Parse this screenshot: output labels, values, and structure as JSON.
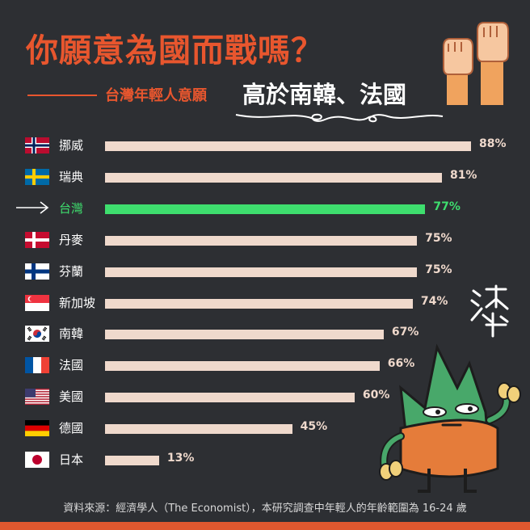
{
  "title": "你願意為國而戰嗎？",
  "subtitle_prefix": "台灣年輕人意願",
  "subtitle_main": "高於南韓、法國",
  "source_note": "資料來源：經濟學人（The Economist），本研究調查中年輕人的年齡範圍為 16-24 歲",
  "colors": {
    "accent": "#e8562e",
    "highlight": "#3ede6e",
    "bar": "#efd9cc",
    "background": "#2d2f33"
  },
  "chart_data": {
    "type": "bar",
    "orientation": "horizontal",
    "categories": [
      "挪威",
      "瑞典",
      "台灣",
      "丹麥",
      "芬蘭",
      "新加坡",
      "南韓",
      "法國",
      "美國",
      "德國",
      "日本"
    ],
    "values": [
      88,
      81,
      77,
      75,
      75,
      74,
      67,
      66,
      60,
      45,
      13
    ],
    "value_labels": [
      "88%",
      "81%",
      "77%",
      "75%",
      "75%",
      "74%",
      "67%",
      "66%",
      "60%",
      "45%",
      "13%"
    ],
    "flags": [
      "norway-flag",
      "sweden-flag",
      "arrow-icon",
      "denmark-flag",
      "finland-flag",
      "singapore-flag",
      "south-korea-flag",
      "france-flag",
      "usa-flag",
      "germany-flag",
      "japan-flag"
    ],
    "highlight": "台灣",
    "xlim": [
      0,
      100
    ]
  }
}
